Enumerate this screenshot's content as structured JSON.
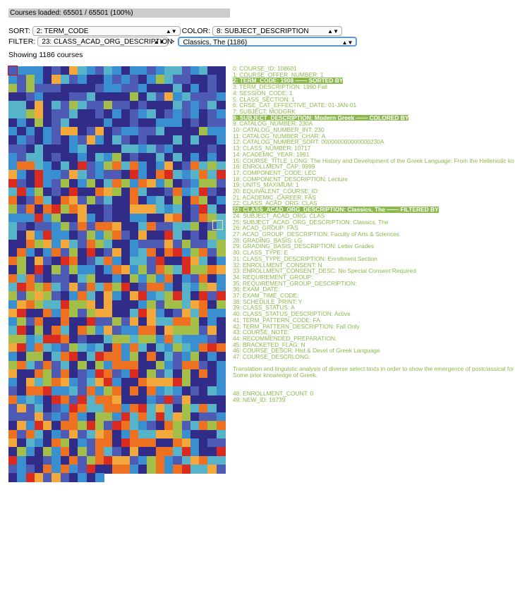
{
  "status": {
    "loaded_text": "Courses loaded: 65501 / 65501 (100%)"
  },
  "controls": {
    "sort_label": "SORT:",
    "sort_value": "2: TERM_CODE",
    "color_label": "COLOR:",
    "color_value": "8: SUBJECT_DESCRIPTION",
    "filter_label": "FILTER:",
    "filter_value": "23: CLASS_ACAD_ORG_DESCRIPTION",
    "filter_arrow": ">",
    "filter_subvalue": "Classics, The (1186)"
  },
  "showing_text": "Showing 1186 courses",
  "grid": {
    "columns": 25,
    "count": 1186,
    "palette": [
      "#312c88",
      "#4e5bb4",
      "#3a8fd0",
      "#57b3c8",
      "#a3bf4a",
      "#f2a83a",
      "#ee7021",
      "#d92b1f"
    ]
  },
  "fields": [
    {
      "text": "0: COURSE_ID: 108601"
    },
    {
      "text": "1: COURSE_OFFER_NUMBER: 1"
    },
    {
      "text": "2: TERM_CODE: 1908 —— SORTED BY",
      "highlight": true
    },
    {
      "text": "3: TERM_DESCRIPTION: 1990 Fall"
    },
    {
      "text": "4: SESSION_CODE: 1"
    },
    {
      "text": "5: CLASS_SECTION: 1"
    },
    {
      "text": "6: CRSE_CAT_EFFECTIVE_DATE: 01-JAN-01"
    },
    {
      "text": "7: SUBJECT: MODGRK"
    },
    {
      "text": "8: SUBJECT_DESCRIPTION: Modern Greek —— COLORED BY",
      "highlight": true
    },
    {
      "text": "9: CATALOG_NUMBER: 230A"
    },
    {
      "text": "10: CATALOG_NUMBER_INT: 230"
    },
    {
      "text": "11: CATALOG_NUMBER_CHAR: A"
    },
    {
      "text": "12: CATALOG_NUMBER_SORT: 000000000000000230A"
    },
    {
      "text": "13: CLASS_NUMBER: 10717"
    },
    {
      "text": "14: ACADEMIC_YEAR: 1991"
    },
    {
      "text": "15: COURSE_TITLE_LONG: The History and Development of the Greek Language: From the Hellenistic ko"
    },
    {
      "text": "16: ENROLLMENT_CAP: 9999"
    },
    {
      "text": "17: COMPONENT_CODE: LEC"
    },
    {
      "text": "18: COMPONENT_DESCRIPTION: Lecture"
    },
    {
      "text": "19: UNITS_MAXIMUM: 1"
    },
    {
      "text": "20: EQUIVALENT_COURSE_ID:"
    },
    {
      "text": "21: ACADEMIC_CAREER: FAS"
    },
    {
      "text": "22: CLASS_ACAD_ORG: CLAS"
    },
    {
      "text": "23: CLASS_ACAD_ORG_DESCRIPTION: Classics, The —— FILTERED BY",
      "highlight": true
    },
    {
      "text": "24: SUBJECT_ACAD_ORG: CLAS"
    },
    {
      "text": "25: SUBJECT_ACAD_ORG_DESCRIPTION: Classics, The"
    },
    {
      "text": "26: ACAD_GROUP: FAS"
    },
    {
      "text": "27: ACAD_GROUP_DESCRIPTION: Faculty of Arts & Sciences"
    },
    {
      "text": "28: GRADING_BASIS: LG"
    },
    {
      "text": "29: GRADING_BASIS_DESCRIPTION: Letter Grades"
    },
    {
      "text": "30: CLASS_TYPE: E"
    },
    {
      "text": "31: CLASS_TYPE_DESCRIPTION: Enrollment Section"
    },
    {
      "text": "32: ENROLLMENT_CONSENT: N"
    },
    {
      "text": "33: ENROLLMENT_CONSENT_DESC: No Special Consent Required"
    },
    {
      "text": "34: REQUIREMENT_GROUP:"
    },
    {
      "text": "35: REQUIREMENT_GROUP_DESCRIPTION:"
    },
    {
      "text": "36: EXAM_DATE:"
    },
    {
      "text": "37: EXAM_TIME_CODE:"
    },
    {
      "text": "38: SCHEDULE_PRINT: Y"
    },
    {
      "text": "39: CLASS_STATUS: A"
    },
    {
      "text": "40: CLASS_STATUS_DESCRIPTION: Active"
    },
    {
      "text": "41: TERM_PATTERN_CODE: FA"
    },
    {
      "text": "42: TERM_PATTERN_DESCRIPTION: Fall Only"
    },
    {
      "text": "43: COURSE_NOTE:"
    },
    {
      "text": "44: RECOMMENDED_PREPARATION:"
    },
    {
      "text": "45: BRACKETED_FLAG: N"
    },
    {
      "text": "46: COURSE_DESCR: Hist & Devel of Greek Language"
    },
    {
      "text": "47: COURSE_DESCRLONG:"
    },
    {
      "text": "",
      "gap": true
    },
    {
      "text": "Translation and linguistic analysis of diverse select texts in order to show the emergence of postclassical for charters; vernacular verse and verse romances. Some prior knowledge of Greek.",
      "long": true
    },
    {
      "text": "",
      "gap": true
    },
    {
      "text": "",
      "gap": true
    },
    {
      "text": "48: ENROLLMENT_COUNT: 0"
    },
    {
      "text": "49: NEW_ID: 16739"
    }
  ]
}
